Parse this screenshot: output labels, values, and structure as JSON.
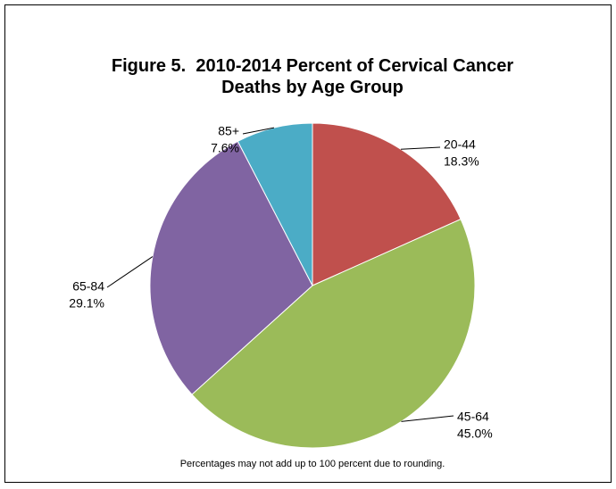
{
  "chart_data": {
    "type": "pie",
    "title": "Figure 5.  2010-2014 Percent of Cervical Cancer Deaths by Age Group",
    "categories": [
      "20-44",
      "45-64",
      "65-84",
      "85+"
    ],
    "values": [
      18.3,
      45.0,
      29.1,
      7.6
    ],
    "value_labels": [
      "18.3%",
      "45.0%",
      "29.1%",
      "7.6%"
    ],
    "colors": [
      "#c0504d",
      "#9bbb59",
      "#8064a2",
      "#4bacc6"
    ],
    "note": "Percentages may not add up to 100 percent due to rounding."
  }
}
